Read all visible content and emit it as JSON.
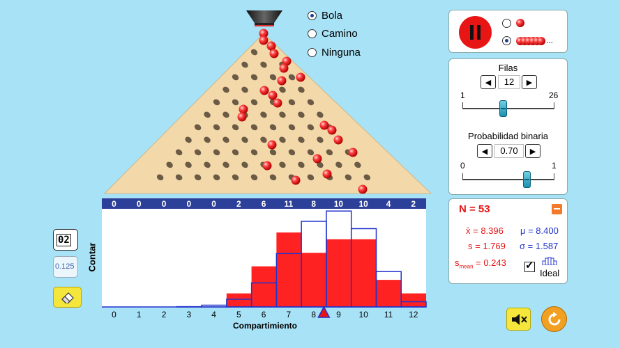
{
  "colors": {
    "background": "#a8e2f6",
    "bar_fill": "#ff2222",
    "ideal_outline": "#2233cc",
    "count_bar": "#2c3f99",
    "board": "#f3d9a9",
    "play_button": "#e81515"
  },
  "mode_options": [
    {
      "label": "Bola",
      "selected": true
    },
    {
      "label": "Camino",
      "selected": false
    },
    {
      "label": "Ninguna",
      "selected": false
    }
  ],
  "playback": {
    "state": "pause-icon",
    "ball_options": [
      "single-ball",
      "ball-stream"
    ],
    "selected_ball_option": "ball-stream",
    "ellipsis": "..."
  },
  "rows": {
    "label": "Filas",
    "value": "12",
    "min": "1",
    "max": "26",
    "fraction": 0.44
  },
  "probability": {
    "label": "Probabilidad binaria",
    "value": "0.70",
    "min": "0",
    "max": "1",
    "fraction": 0.7
  },
  "stats": {
    "n_label": "N = 53",
    "mean_label": "x̄ = 8.396",
    "mu_label": "μ = 8.400",
    "s_label": "s = 1.769",
    "sigma_label": "σ = 1.587",
    "smean_prefix": "s",
    "smean_sub": "mean",
    "smean_value": " = 0.243",
    "ideal_label": "Ideal",
    "ideal_checked": true
  },
  "left_controls": {
    "counter_text": "02",
    "probability_text": "0.125",
    "eraser": "eraser-icon"
  },
  "bottom_controls": {
    "mute": "speaker-mute-icon",
    "reset": "reset-icon"
  },
  "chart_data": {
    "type": "bar",
    "categories": [
      "0",
      "1",
      "2",
      "3",
      "4",
      "5",
      "6",
      "7",
      "8",
      "9",
      "10",
      "11",
      "12"
    ],
    "values": [
      0,
      0,
      0,
      0,
      0,
      2,
      6,
      11,
      8,
      10,
      10,
      4,
      2
    ],
    "series": [
      {
        "values": [
          0,
          0,
          0,
          0,
          0,
          2,
          6,
          11,
          8,
          10,
          10,
          4,
          2
        ]
      },
      {
        "values": [
          0.0,
          0.0,
          0.0,
          0.04,
          0.26,
          1.14,
          3.55,
          7.89,
          12.65,
          14.17,
          11.57,
          5.22,
          0.77
        ]
      }
    ],
    "ylabel": "Contar",
    "xlabel": "Compartimiento",
    "ylim": [
      0,
      14.5
    ],
    "mean_marker": 8.4
  }
}
